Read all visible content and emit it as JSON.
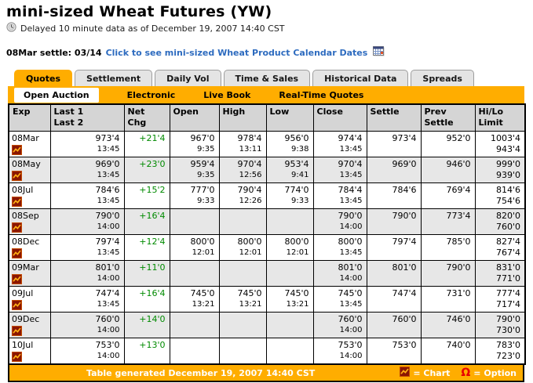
{
  "header": {
    "title": "mini-sized Wheat Futures (YW)",
    "delayed_notice": "Delayed 10 minute data as of December 19, 2007 14:40 CST",
    "settle_text": "08Mar settle: 03/14",
    "calendar_link": "Click to see mini-sized Wheat Product Calendar Dates"
  },
  "tabs": {
    "items": [
      {
        "label": "Quotes",
        "active": true
      },
      {
        "label": "Settlement",
        "active": false
      },
      {
        "label": "Daily Vol",
        "active": false
      },
      {
        "label": "Time & Sales",
        "active": false
      },
      {
        "label": "Historical Data",
        "active": false
      },
      {
        "label": "Spreads",
        "active": false
      }
    ],
    "subtabs": [
      {
        "label": "Open Auction",
        "active": true
      },
      {
        "label": "Electronic",
        "active": false
      },
      {
        "label": "Live Book",
        "active": false
      },
      {
        "label": "Real-Time Quotes",
        "active": false
      }
    ]
  },
  "table": {
    "columns": [
      [
        "Exp",
        ""
      ],
      [
        "Last 1",
        "Last 2"
      ],
      [
        "Net",
        "Chg"
      ],
      [
        "Open",
        ""
      ],
      [
        "High",
        ""
      ],
      [
        "Low",
        ""
      ],
      [
        "Close",
        ""
      ],
      [
        "Settle",
        ""
      ],
      [
        "Prev",
        "Settle"
      ],
      [
        "Hi/Lo",
        "Limit"
      ]
    ],
    "rows": [
      {
        "exp": "08Mar",
        "last": "973'4",
        "last_time": "13:45",
        "chg": "+21'4",
        "open": "967'0",
        "open_time": "9:35",
        "high": "978'4",
        "high_time": "13:11",
        "low": "956'0",
        "low_time": "9:38",
        "close": "974'4",
        "close_time": "13:45",
        "settle": "973'4",
        "prev_settle": "952'0",
        "hi_limit": "1003'4",
        "lo_limit": "943'4"
      },
      {
        "exp": "08May",
        "last": "969'0",
        "last_time": "13:45",
        "chg": "+23'0",
        "open": "959'4",
        "open_time": "9:35",
        "high": "970'4",
        "high_time": "12:56",
        "low": "953'4",
        "low_time": "9:41",
        "close": "970'4",
        "close_time": "13:45",
        "settle": "969'0",
        "prev_settle": "946'0",
        "hi_limit": "999'0",
        "lo_limit": "939'0"
      },
      {
        "exp": "08Jul",
        "last": "784'6",
        "last_time": "13:45",
        "chg": "+15'2",
        "open": "777'0",
        "open_time": "9:33",
        "high": "790'4",
        "high_time": "12:26",
        "low": "774'0",
        "low_time": "9:33",
        "close": "784'4",
        "close_time": "13:45",
        "settle": "784'6",
        "prev_settle": "769'4",
        "hi_limit": "814'6",
        "lo_limit": "754'6"
      },
      {
        "exp": "08Sep",
        "last": "790'0",
        "last_time": "14:00",
        "chg": "+16'4",
        "open": "",
        "open_time": "",
        "high": "",
        "high_time": "",
        "low": "",
        "low_time": "",
        "close": "790'0",
        "close_time": "14:00",
        "settle": "790'0",
        "prev_settle": "773'4",
        "hi_limit": "820'0",
        "lo_limit": "760'0"
      },
      {
        "exp": "08Dec",
        "last": "797'4",
        "last_time": "13:45",
        "chg": "+12'4",
        "open": "800'0",
        "open_time": "12:01",
        "high": "800'0",
        "high_time": "12:01",
        "low": "800'0",
        "low_time": "12:01",
        "close": "800'0",
        "close_time": "13:45",
        "settle": "797'4",
        "prev_settle": "785'0",
        "hi_limit": "827'4",
        "lo_limit": "767'4"
      },
      {
        "exp": "09Mar",
        "last": "801'0",
        "last_time": "14:00",
        "chg": "+11'0",
        "open": "",
        "open_time": "",
        "high": "",
        "high_time": "",
        "low": "",
        "low_time": "",
        "close": "801'0",
        "close_time": "14:00",
        "settle": "801'0",
        "prev_settle": "790'0",
        "hi_limit": "831'0",
        "lo_limit": "771'0"
      },
      {
        "exp": "09Jul",
        "last": "747'4",
        "last_time": "13:45",
        "chg": "+16'4",
        "open": "745'0",
        "open_time": "13:21",
        "high": "745'0",
        "high_time": "13:21",
        "low": "745'0",
        "low_time": "13:21",
        "close": "745'0",
        "close_time": "13:45",
        "settle": "747'4",
        "prev_settle": "731'0",
        "hi_limit": "777'4",
        "lo_limit": "717'4"
      },
      {
        "exp": "09Dec",
        "last": "760'0",
        "last_time": "14:00",
        "chg": "+14'0",
        "open": "",
        "open_time": "",
        "high": "",
        "high_time": "",
        "low": "",
        "low_time": "",
        "close": "760'0",
        "close_time": "14:00",
        "settle": "760'0",
        "prev_settle": "746'0",
        "hi_limit": "790'0",
        "lo_limit": "730'0"
      },
      {
        "exp": "10Jul",
        "last": "753'0",
        "last_time": "14:00",
        "chg": "+13'0",
        "open": "",
        "open_time": "",
        "high": "",
        "high_time": "",
        "low": "",
        "low_time": "",
        "close": "753'0",
        "close_time": "14:00",
        "settle": "753'0",
        "prev_settle": "740'0",
        "hi_limit": "783'0",
        "lo_limit": "723'0"
      }
    ]
  },
  "footer": {
    "generated_text": "Table generated December 19, 2007 14:40 CST",
    "chart_legend": "= Chart",
    "option_symbol": "Ω",
    "option_legend": "= Option"
  },
  "icons": {
    "clock_icon": "clock face",
    "calendar_icon": "calendar grid",
    "chart_icon": "red square with orange zigzag line",
    "option_icon": "Ω"
  },
  "colors": {
    "accent_orange": "#FFAD00",
    "positive_green": "#008A00",
    "link_blue": "#2D6BBF",
    "header_gray": "#D5D5D5",
    "alt_row_gray": "#E7E7E7",
    "chart_icon_red": "#8A1602",
    "option_red": "#E80000"
  }
}
